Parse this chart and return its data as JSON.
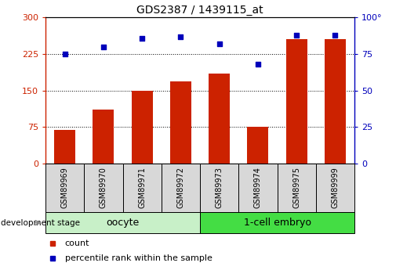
{
  "title": "GDS2387 / 1439115_at",
  "samples": [
    "GSM89969",
    "GSM89970",
    "GSM89971",
    "GSM89972",
    "GSM89973",
    "GSM89974",
    "GSM89975",
    "GSM89999"
  ],
  "counts": [
    68,
    110,
    150,
    168,
    185,
    75,
    255,
    255
  ],
  "percentile_ranks": [
    75,
    80,
    86,
    87,
    82,
    68,
    88,
    88
  ],
  "left_ylim": [
    0,
    300
  ],
  "right_ylim": [
    0,
    100
  ],
  "left_yticks": [
    0,
    75,
    150,
    225,
    300
  ],
  "right_yticks": [
    0,
    25,
    50,
    75,
    100
  ],
  "left_ytick_labels": [
    "0",
    "75",
    "150",
    "225",
    "300"
  ],
  "right_ytick_labels": [
    "0",
    "25",
    "50",
    "75",
    "100°"
  ],
  "bar_color": "#cc2200",
  "dot_color": "#0000bb",
  "group_box_color_oocyte": "#c8f0c8",
  "group_box_color_1cell": "#44dd44",
  "sample_box_color": "#d8d8d8",
  "bg_color": "white",
  "left_label_color": "#cc2200",
  "right_label_color": "#0000bb",
  "grid_dotted_levels": [
    75,
    150,
    225
  ],
  "oocyte_label": "oocyte",
  "cell_label": "1-cell embryo",
  "dev_stage_label": "development stage",
  "legend_count": "count",
  "legend_pct": "percentile rank within the sample",
  "title_fontsize": 10,
  "axis_fontsize": 8,
  "sample_fontsize": 7,
  "group_fontsize": 9,
  "legend_fontsize": 8
}
